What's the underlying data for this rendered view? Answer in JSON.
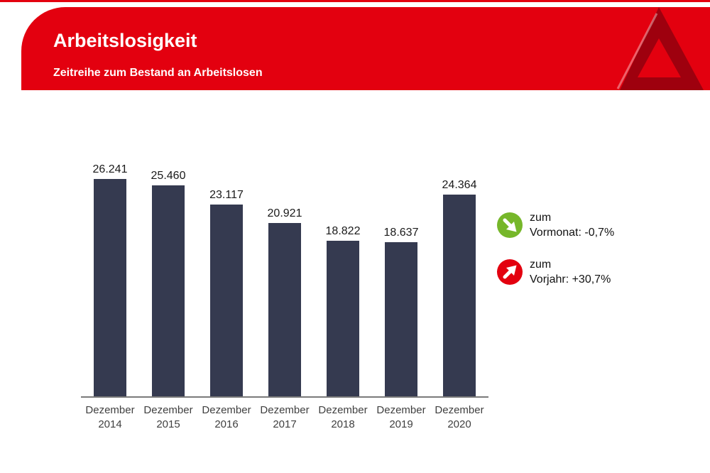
{
  "page": {
    "background": "#ffffff"
  },
  "header": {
    "title": "Arbeitslosigkeit",
    "subtitle": "Zeitreihe zum Bestand an Arbeitslosen",
    "brand_color": "#e3000f",
    "logo_color": "#9e000e",
    "logo_name": "agentur-fuer-arbeit-a-logo"
  },
  "chart_data": {
    "type": "bar",
    "title": "Zeitreihe zum Bestand an Arbeitslosen",
    "categories": [
      "Dezember 2014",
      "Dezember 2015",
      "Dezember 2016",
      "Dezember 2017",
      "Dezember 2018",
      "Dezember 2019",
      "Dezember 2020"
    ],
    "values": [
      26241,
      25460,
      23117,
      20921,
      18822,
      18637,
      24364
    ],
    "value_labels": [
      "26.241",
      "25.460",
      "23.117",
      "20.921",
      "18.822",
      "18.637",
      "24.364"
    ],
    "bar_color": "#353a50",
    "axis_line_color": "#7a7a7a",
    "xlabel": "",
    "ylabel": "",
    "ylim": [
      0,
      28000
    ],
    "grid": false,
    "legend_position": "right"
  },
  "legend": {
    "items": [
      {
        "line1": "zum",
        "line2": "Vormonat: -0,7%",
        "icon": "arrow-down-right",
        "color": "#76b72a"
      },
      {
        "line1": "zum",
        "line2": "Vorjahr: +30,7%",
        "icon": "arrow-up-right",
        "color": "#e3000f"
      }
    ]
  }
}
